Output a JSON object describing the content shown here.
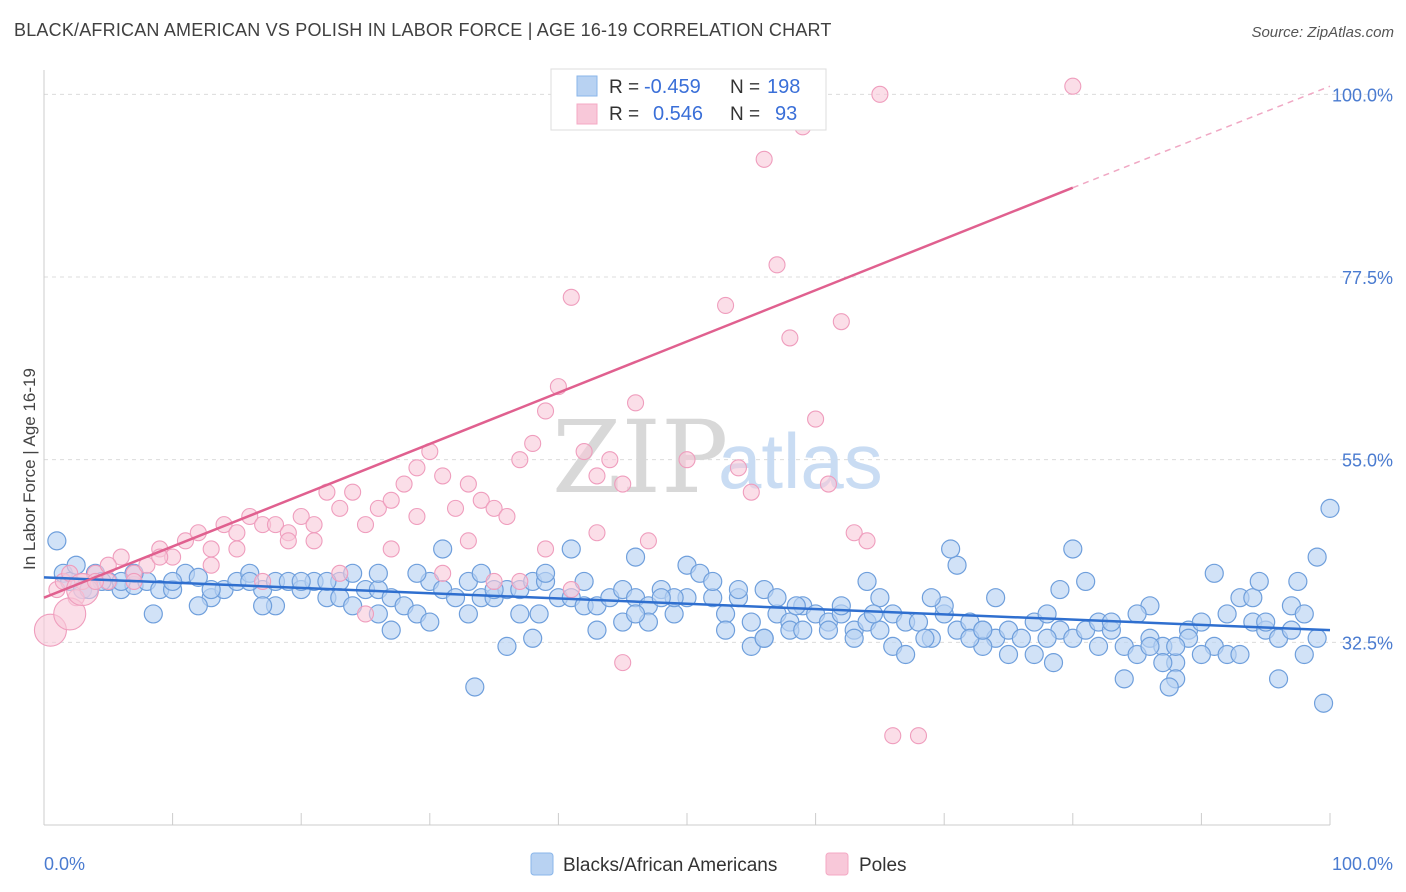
{
  "title": "BLACK/AFRICAN AMERICAN VS POLISH IN LABOR FORCE | AGE 16-19 CORRELATION CHART",
  "source": "Source: ZipAtlas.com",
  "watermark": {
    "zip": "ZIP",
    "atlas": "atlas"
  },
  "colors": {
    "blue": "#8ab6ea",
    "blue_line": "#2f6fcf",
    "pink": "#f4a9c4",
    "pink_line": "#e0608f",
    "axis_text": "#4a7bd0"
  },
  "chart_data": {
    "type": "scatter",
    "title": "BLACK/AFRICAN AMERICAN VS POLISH IN LABOR FORCE | AGE 16-19 CORRELATION CHART",
    "xlabel": "",
    "ylabel": "In Labor Force | Age 16-19",
    "xlim": [
      0,
      100
    ],
    "ylim": [
      10,
      103
    ],
    "x_tick_labels": [
      "0.0%",
      "100.0%"
    ],
    "y_ticks": [
      32.5,
      55.0,
      77.5,
      100.0
    ],
    "y_tick_labels": [
      "32.5%",
      "55.0%",
      "77.5%",
      "100.0%"
    ],
    "grid": true,
    "legend_top": [
      {
        "r_label": "R =",
        "r": "-0.459",
        "n_label": "N =",
        "n": "198"
      },
      {
        "r_label": "R =",
        "r": "0.546",
        "n_label": "N =",
        "n": "93"
      }
    ],
    "series": [
      {
        "name": "Blacks/African Americans",
        "color": "#8ab6ea",
        "trend": {
          "x0": 0,
          "y0": 40.5,
          "x1": 100,
          "y1": 34.0
        },
        "points": [
          [
            1,
            45
          ],
          [
            1.5,
            41
          ],
          [
            2,
            40
          ],
          [
            3,
            39
          ],
          [
            4,
            41
          ],
          [
            5,
            40
          ],
          [
            6,
            39
          ],
          [
            7,
            39.5
          ],
          [
            8,
            40
          ],
          [
            9,
            39
          ],
          [
            10,
            39
          ],
          [
            11,
            41
          ],
          [
            12,
            40.5
          ],
          [
            13,
            38
          ],
          [
            14,
            39
          ],
          [
            15,
            40
          ],
          [
            16,
            41
          ],
          [
            17,
            39
          ],
          [
            18,
            40
          ],
          [
            19,
            40
          ],
          [
            20,
            39
          ],
          [
            21,
            40
          ],
          [
            22,
            38
          ],
          [
            23,
            40
          ],
          [
            24,
            41
          ],
          [
            25,
            39
          ],
          [
            26,
            39
          ],
          [
            27,
            38
          ],
          [
            28,
            37
          ],
          [
            29,
            36
          ],
          [
            30,
            40
          ],
          [
            31,
            39
          ],
          [
            32,
            38
          ],
          [
            33,
            40
          ],
          [
            34,
            38
          ],
          [
            35,
            38
          ],
          [
            36,
            39
          ],
          [
            37,
            39
          ],
          [
            38,
            40
          ],
          [
            39,
            40
          ],
          [
            40,
            38
          ],
          [
            41,
            38
          ],
          [
            42,
            37
          ],
          [
            43,
            37
          ],
          [
            44,
            38
          ],
          [
            45,
            39
          ],
          [
            46,
            38
          ],
          [
            47,
            37
          ],
          [
            48,
            39
          ],
          [
            49,
            36
          ],
          [
            50,
            42
          ],
          [
            51,
            41
          ],
          [
            52,
            38
          ],
          [
            53,
            36
          ],
          [
            54,
            38
          ],
          [
            55,
            35
          ],
          [
            56,
            39
          ],
          [
            57,
            36
          ],
          [
            58,
            35
          ],
          [
            59,
            37
          ],
          [
            60,
            36
          ],
          [
            61,
            35
          ],
          [
            62,
            36
          ],
          [
            63,
            34
          ],
          [
            64,
            35
          ],
          [
            65,
            38
          ],
          [
            66,
            36
          ],
          [
            67,
            35
          ],
          [
            68,
            35
          ],
          [
            69,
            33
          ],
          [
            70,
            36
          ],
          [
            71,
            34
          ],
          [
            72,
            35
          ],
          [
            73,
            34
          ],
          [
            74,
            33
          ],
          [
            75,
            34
          ],
          [
            76,
            33
          ],
          [
            77,
            35
          ],
          [
            78,
            36
          ],
          [
            79,
            34
          ],
          [
            80,
            33
          ],
          [
            81,
            34
          ],
          [
            82,
            35
          ],
          [
            83,
            34
          ],
          [
            84,
            32
          ],
          [
            85,
            31
          ],
          [
            86,
            33
          ],
          [
            87,
            32
          ],
          [
            88,
            30
          ],
          [
            89,
            34
          ],
          [
            90,
            35
          ],
          [
            91,
            32
          ],
          [
            92,
            31
          ],
          [
            93,
            38
          ],
          [
            94,
            35
          ],
          [
            95,
            34
          ],
          [
            96,
            33
          ],
          [
            97,
            37
          ],
          [
            98,
            36
          ],
          [
            99,
            33
          ],
          [
            100,
            49
          ],
          [
            2.5,
            42
          ],
          [
            4.5,
            40
          ],
          [
            8.5,
            36
          ],
          [
            12,
            37
          ],
          [
            18,
            37
          ],
          [
            22,
            40
          ],
          [
            26,
            41
          ],
          [
            30,
            35
          ],
          [
            34,
            41
          ],
          [
            38,
            33
          ],
          [
            42,
            40
          ],
          [
            46,
            43
          ],
          [
            50,
            38
          ],
          [
            54,
            39
          ],
          [
            58,
            34
          ],
          [
            62,
            37
          ],
          [
            66,
            32
          ],
          [
            70,
            37
          ],
          [
            74,
            38
          ],
          [
            78,
            33
          ],
          [
            82,
            32
          ],
          [
            86,
            37
          ],
          [
            90,
            31
          ],
          [
            94,
            38
          ],
          [
            98,
            31
          ],
          [
            23,
            38
          ],
          [
            33,
            36
          ],
          [
            43,
            34
          ],
          [
            53,
            34
          ],
          [
            63,
            33
          ],
          [
            73,
            32
          ],
          [
            83,
            35
          ],
          [
            93,
            31
          ],
          [
            7,
            41
          ],
          [
            17,
            37
          ],
          [
            27,
            34
          ],
          [
            37,
            36
          ],
          [
            47,
            35
          ],
          [
            57,
            38
          ],
          [
            67,
            31
          ],
          [
            77,
            31
          ],
          [
            87,
            30
          ],
          [
            97,
            34
          ],
          [
            3.5,
            39
          ],
          [
            13,
            39
          ],
          [
            24,
            37
          ],
          [
            35,
            39
          ],
          [
            45,
            35
          ],
          [
            55,
            32
          ],
          [
            65,
            34
          ],
          [
            75,
            31
          ],
          [
            85,
            36
          ],
          [
            95,
            35
          ],
          [
            10,
            40
          ],
          [
            20,
            40
          ],
          [
            29,
            41
          ],
          [
            39,
            41
          ],
          [
            49,
            38
          ],
          [
            59,
            34
          ],
          [
            69,
            38
          ],
          [
            79,
            39
          ],
          [
            89,
            33
          ],
          [
            99,
            43
          ],
          [
            6,
            40
          ],
          [
            16,
            40
          ],
          [
            26,
            36
          ],
          [
            36,
            32
          ],
          [
            46,
            36
          ],
          [
            56,
            33
          ],
          [
            64,
            40
          ],
          [
            71,
            42
          ],
          [
            80,
            44
          ],
          [
            84,
            28
          ],
          [
            88,
            28
          ],
          [
            91,
            41
          ],
          [
            31,
            44
          ],
          [
            41,
            44
          ],
          [
            52,
            40
          ],
          [
            61,
            34
          ],
          [
            72,
            33
          ],
          [
            81,
            40
          ],
          [
            92,
            36
          ],
          [
            96,
            28
          ],
          [
            99.5,
            25
          ],
          [
            33.5,
            27
          ],
          [
            56,
            33
          ],
          [
            73,
            34
          ],
          [
            86,
            32
          ],
          [
            38.5,
            36
          ],
          [
            48,
            38
          ],
          [
            58.5,
            37
          ],
          [
            68.5,
            33
          ],
          [
            78.5,
            30
          ],
          [
            87.5,
            27
          ],
          [
            94.5,
            40
          ],
          [
            97.5,
            40
          ],
          [
            88,
            32
          ],
          [
            70.5,
            44
          ],
          [
            64.5,
            36
          ]
        ]
      },
      {
        "name": "Poles",
        "color": "#f4a9c4",
        "trend": {
          "x0": 0,
          "y0": 38.0,
          "x1": 80,
          "y1": 88.5,
          "dash_to_x": 100,
          "dash_to_y": 101.0
        },
        "points": [
          [
            0.5,
            34
          ],
          [
            1,
            39
          ],
          [
            1.5,
            40
          ],
          [
            2,
            41
          ],
          [
            2.5,
            38
          ],
          [
            3,
            40
          ],
          [
            4,
            41
          ],
          [
            5,
            40
          ],
          [
            6,
            43
          ],
          [
            7,
            41
          ],
          [
            8,
            42
          ],
          [
            9,
            44
          ],
          [
            10,
            43
          ],
          [
            11,
            45
          ],
          [
            12,
            46
          ],
          [
            13,
            44
          ],
          [
            14,
            47
          ],
          [
            15,
            46
          ],
          [
            16,
            48
          ],
          [
            17,
            47
          ],
          [
            18,
            47
          ],
          [
            19,
            46
          ],
          [
            20,
            48
          ],
          [
            21,
            47
          ],
          [
            22,
            51
          ],
          [
            23,
            49
          ],
          [
            24,
            51
          ],
          [
            25,
            47
          ],
          [
            26,
            49
          ],
          [
            27,
            50
          ],
          [
            28,
            52
          ],
          [
            29,
            54
          ],
          [
            30,
            56
          ],
          [
            31,
            53
          ],
          [
            32,
            49
          ],
          [
            33,
            52
          ],
          [
            34,
            50
          ],
          [
            35,
            49
          ],
          [
            36,
            48
          ],
          [
            37,
            55
          ],
          [
            38,
            57
          ],
          [
            39,
            61
          ],
          [
            40,
            64
          ],
          [
            41,
            75
          ],
          [
            42,
            56
          ],
          [
            43,
            53
          ],
          [
            44,
            55
          ],
          [
            45,
            52
          ],
          [
            46,
            62
          ],
          [
            47,
            45
          ],
          [
            48,
            101
          ],
          [
            49,
            101
          ],
          [
            50,
            101
          ],
          [
            51,
            101
          ],
          [
            52,
            100
          ],
          [
            53,
            74
          ],
          [
            54,
            54
          ],
          [
            55,
            51
          ],
          [
            56,
            92
          ],
          [
            57,
            79
          ],
          [
            58,
            70
          ],
          [
            59,
            96
          ],
          [
            60,
            60
          ],
          [
            61,
            52
          ],
          [
            62,
            72
          ],
          [
            63,
            46
          ],
          [
            64,
            45
          ],
          [
            65,
            100
          ],
          [
            5,
            42
          ],
          [
            7,
            40
          ],
          [
            9,
            43
          ],
          [
            13,
            42
          ],
          [
            15,
            44
          ],
          [
            17,
            40
          ],
          [
            19,
            45
          ],
          [
            21,
            45
          ],
          [
            23,
            41
          ],
          [
            25,
            36
          ],
          [
            27,
            44
          ],
          [
            29,
            48
          ],
          [
            31,
            41
          ],
          [
            33,
            45
          ],
          [
            35,
            40
          ],
          [
            37,
            40
          ],
          [
            39,
            44
          ],
          [
            41,
            39
          ],
          [
            43,
            46
          ],
          [
            45,
            30
          ],
          [
            50,
            55
          ],
          [
            66,
            21
          ],
          [
            68,
            21
          ],
          [
            80,
            101
          ],
          [
            2,
            36
          ],
          [
            3,
            39
          ],
          [
            4,
            40
          ]
        ]
      }
    ]
  },
  "legend_bottom": [
    "Blacks/African Americans",
    "Poles"
  ]
}
